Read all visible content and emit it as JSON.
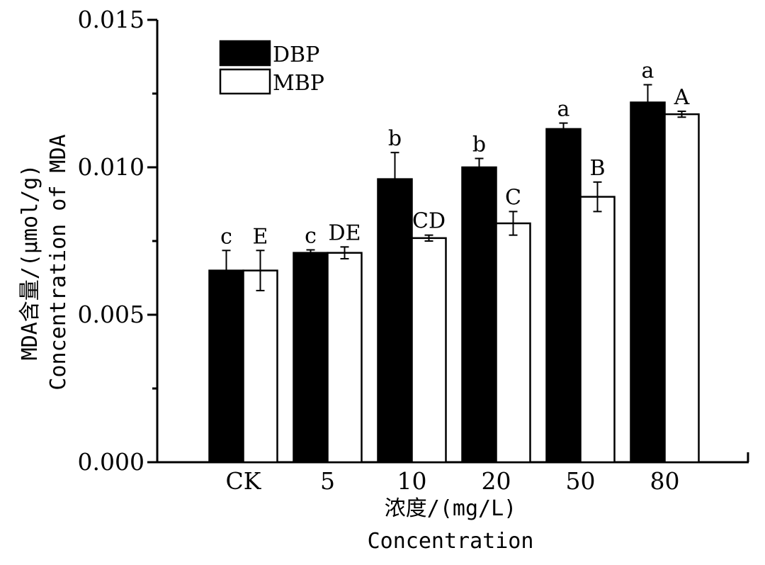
{
  "chart_data": {
    "type": "bar",
    "categories": [
      "CK",
      "5",
      "10",
      "20",
      "50",
      "80"
    ],
    "series": [
      {
        "name": "DBP",
        "values": [
          0.0065,
          0.0071,
          0.0096,
          0.01,
          0.0113,
          0.0122
        ],
        "errors": [
          0.00068,
          0.0001,
          0.0009,
          0.0003,
          0.0002,
          0.0006
        ],
        "labels": [
          "c",
          "c",
          "b",
          "b",
          "a",
          "a"
        ],
        "color": "#000000"
      },
      {
        "name": "MBP",
        "values": [
          0.0065,
          0.0071,
          0.0076,
          0.0081,
          0.009,
          0.0118
        ],
        "errors": [
          0.00068,
          0.0002,
          0.0001,
          0.0004,
          0.0005,
          0.0001
        ],
        "labels": [
          "E",
          "DE",
          "CD",
          "C",
          "B",
          "A"
        ],
        "color": "#ffffff"
      }
    ],
    "ylabel_line1": "MDA含量/(μmol/g)",
    "ylabel_line2": "Concentration of MDA",
    "xlabel_line1": "浓度/(mg/L)",
    "xlabel_line2": "Concentration",
    "ylim": [
      0,
      0.015
    ],
    "yticks": [
      "0.000",
      "0.005",
      "0.010",
      "0.015"
    ],
    "legend_position": "top-left",
    "grid": false
  }
}
